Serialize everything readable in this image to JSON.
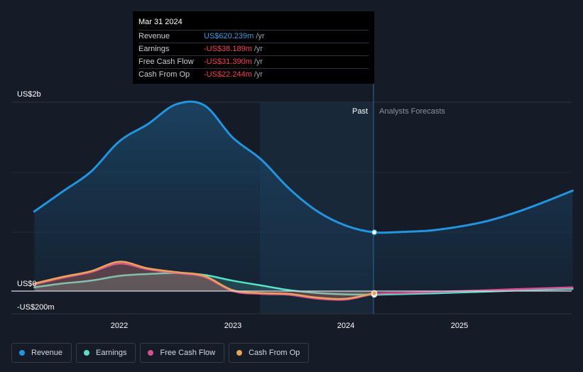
{
  "chart_data": {
    "type": "area",
    "y_labels": [
      "US$2b",
      "US$0",
      "-US$200m"
    ],
    "x_ticks": [
      "2022",
      "2023",
      "2024",
      "2025"
    ],
    "ylim": [
      -200,
      2000
    ],
    "past_label": "Past",
    "forecast_label": "Analysts Forecasts",
    "series": [
      {
        "name": "Revenue",
        "color": "#2394df",
        "x": [
          2021.25,
          2021.5,
          2021.75,
          2022.0,
          2022.25,
          2022.5,
          2022.75,
          2023.0,
          2023.25,
          2023.5,
          2023.75,
          2024.0,
          2024.25,
          2024.5,
          2024.75,
          2025.0,
          2025.25,
          2025.5,
          2025.75,
          2026.0
        ],
        "values": [
          840,
          1050,
          1260,
          1580,
          1760,
          1970,
          1960,
          1620,
          1390,
          1080,
          840,
          690,
          620,
          625,
          640,
          680,
          740,
          830,
          940,
          1060
        ]
      },
      {
        "name": "Earnings",
        "color": "#58e1c8",
        "x": [
          2021.25,
          2021.5,
          2021.75,
          2022.0,
          2022.25,
          2022.5,
          2022.75,
          2023.0,
          2023.25,
          2023.5,
          2023.75,
          2024.0,
          2024.25,
          2024.5,
          2024.75,
          2025.0,
          2025.25,
          2025.5,
          2025.75,
          2026.0
        ],
        "values": [
          40,
          80,
          110,
          160,
          180,
          190,
          170,
          110,
          60,
          10,
          -20,
          -35,
          -38,
          -32,
          -25,
          -15,
          -5,
          5,
          15,
          25
        ]
      },
      {
        "name": "Free Cash Flow",
        "color": "#d84f95",
        "x": [
          2021.25,
          2021.5,
          2021.75,
          2022.0,
          2022.25,
          2022.5,
          2022.75,
          2023.0,
          2023.25,
          2023.5,
          2023.75,
          2024.0,
          2024.25,
          2024.5,
          2024.75,
          2025.0,
          2025.25,
          2025.5,
          2025.75,
          2026.0
        ],
        "values": [
          70,
          140,
          200,
          290,
          230,
          190,
          150,
          0,
          -30,
          -40,
          -80,
          -90,
          -31,
          -20,
          -10,
          0,
          10,
          20,
          30,
          40
        ]
      },
      {
        "name": "Cash From Op",
        "color": "#eaa25a",
        "x": [
          2021.25,
          2021.5,
          2021.75,
          2022.0,
          2022.25,
          2022.5,
          2022.75,
          2023.0,
          2023.25,
          2023.5,
          2023.75,
          2024.0,
          2024.25
        ],
        "values": [
          80,
          150,
          210,
          310,
          240,
          200,
          160,
          10,
          -20,
          -30,
          -70,
          -80,
          -22
        ]
      }
    ]
  },
  "tooltip": {
    "date": "Mar 31 2024",
    "rows": [
      {
        "label": "Revenue",
        "value": "US$620.239m",
        "unit": "/yr"
      },
      {
        "label": "Earnings",
        "value": "-US$38.189m",
        "unit": "/yr"
      },
      {
        "label": "Free Cash Flow",
        "value": "-US$31.390m",
        "unit": "/yr"
      },
      {
        "label": "Cash From Op",
        "value": "-US$22.244m",
        "unit": "/yr"
      }
    ]
  },
  "legend": [
    {
      "label": "Revenue",
      "color": "#2394df"
    },
    {
      "label": "Earnings",
      "color": "#58e1c8"
    },
    {
      "label": "Free Cash Flow",
      "color": "#d84f95"
    },
    {
      "label": "Cash From Op",
      "color": "#eaa25a"
    }
  ]
}
